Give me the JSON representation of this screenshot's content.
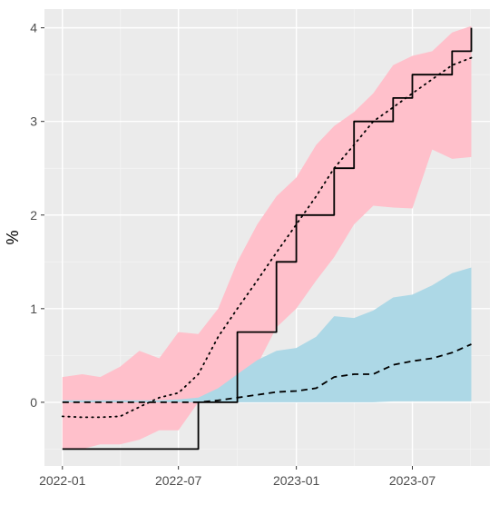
{
  "chart_data": {
    "type": "line",
    "title": "",
    "xlabel": "",
    "ylabel": "%",
    "x": [
      "2022-01",
      "2022-02",
      "2022-03",
      "2022-04",
      "2022-05",
      "2022-06",
      "2022-07",
      "2022-08",
      "2022-09",
      "2022-10",
      "2022-11",
      "2022-12",
      "2023-01",
      "2023-02",
      "2023-03",
      "2023-04",
      "2023-05",
      "2023-06",
      "2023-07",
      "2023-08",
      "2023-09",
      "2023-10"
    ],
    "xlim": [
      "2021-12-04",
      "2023-10-30"
    ],
    "ylim": [
      -0.68,
      4.2
    ],
    "x_ticks": [
      {
        "date": "2022-01",
        "label": "2022-01"
      },
      {
        "date": "2022-07",
        "label": "2022-07"
      },
      {
        "date": "2023-01",
        "label": "2023-01"
      },
      {
        "date": "2023-07",
        "label": "2023-07"
      }
    ],
    "y_ticks": [
      0,
      1,
      2,
      3,
      4
    ],
    "y_tick_labels": [
      "0",
      "1",
      "2",
      "3",
      "4"
    ],
    "grid": true,
    "bands": [
      {
        "color": "#ffc0cb",
        "lower": [
          -0.5,
          -0.5,
          -0.45,
          -0.45,
          -0.4,
          -0.3,
          -0.3,
          0.0,
          0.05,
          0.15,
          0.4,
          0.8,
          1.0,
          1.3,
          1.55,
          1.9,
          2.1,
          2.08,
          2.07,
          2.7,
          2.6,
          2.62
        ],
        "upper": [
          0.27,
          0.3,
          0.27,
          0.38,
          0.55,
          0.47,
          0.75,
          0.73,
          1.0,
          1.5,
          1.9,
          2.2,
          2.4,
          2.75,
          2.95,
          3.1,
          3.3,
          3.6,
          3.7,
          3.75,
          3.95,
          4.02
        ]
      },
      {
        "color": "#add8e6",
        "lower": [
          0.0,
          0.0,
          0.0,
          0.0,
          0.0,
          0.0,
          0.0,
          0.0,
          0.0,
          0.0,
          0.0,
          0.0,
          0.0,
          0.0,
          0.0,
          0.0,
          0.0,
          0.01,
          0.01,
          0.01,
          0.01,
          0.01
        ],
        "upper": [
          0.02,
          0.02,
          0.02,
          0.02,
          0.02,
          0.02,
          0.03,
          0.05,
          0.15,
          0.3,
          0.45,
          0.55,
          0.58,
          0.7,
          0.92,
          0.9,
          0.98,
          1.12,
          1.15,
          1.25,
          1.38,
          1.44
        ]
      }
    ],
    "series": [
      {
        "style": "solid",
        "step": true,
        "values": [
          -0.5,
          -0.5,
          -0.5,
          -0.5,
          -0.5,
          -0.5,
          -0.5,
          0.0,
          0.0,
          0.75,
          0.75,
          1.5,
          2.0,
          2.0,
          2.5,
          3.0,
          3.0,
          3.25,
          3.5,
          3.5,
          3.75,
          4.0
        ]
      },
      {
        "style": "dashed",
        "step": false,
        "values": [
          0.0,
          0.0,
          0.0,
          0.0,
          0.0,
          0.0,
          0.0,
          0.0,
          0.02,
          0.05,
          0.08,
          0.11,
          0.12,
          0.15,
          0.27,
          0.3,
          0.3,
          0.4,
          0.44,
          0.47,
          0.53,
          0.62
        ]
      },
      {
        "style": "dotted",
        "step": false,
        "values": [
          -0.15,
          -0.16,
          -0.16,
          -0.15,
          -0.05,
          0.05,
          0.1,
          0.3,
          0.7,
          1.0,
          1.3,
          1.6,
          1.9,
          2.2,
          2.5,
          2.75,
          3.0,
          3.15,
          3.3,
          3.45,
          3.6,
          3.68
        ]
      }
    ],
    "colors": {
      "panel": "#ebebeb",
      "grid_major": "#ffffff",
      "grid_minor": "#f5f5f5",
      "line": "#000000",
      "tick_text": "#4d4d4d"
    }
  }
}
